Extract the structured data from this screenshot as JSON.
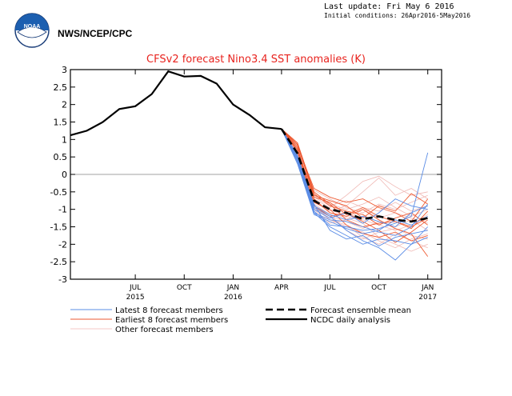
{
  "header": {
    "agency": "NWS/NCEP/CPC",
    "logo_text": "NOAA",
    "last_update": "Last update: Fri May  6 2016",
    "initial_conditions": "Initial conditions: 26Apr2016-5May2016"
  },
  "colors": {
    "title": "#e8231e",
    "latest": "#5a8ce6",
    "earliest": "#ee5a32",
    "other": "#f0b8b4",
    "axis": "#000000",
    "zero_line": "#a0a0a0",
    "logo_blue": "#1c5fb0"
  },
  "chart_data": {
    "type": "line",
    "title": "CFSv2 forecast Nino3.4 SST anomalies (K)",
    "xlabel": "",
    "ylabel": "",
    "ylim": [
      -3,
      3
    ],
    "yticks": [
      -3,
      -2.5,
      -2,
      -1.5,
      -1,
      -0.5,
      0,
      0.5,
      1,
      1.5,
      2,
      2.5,
      3
    ],
    "xlim": [
      "2015-03-15",
      "2017-02-10"
    ],
    "xticks": [
      {
        "date": "2015-07-15",
        "label": "JUL",
        "year": "2015"
      },
      {
        "date": "2015-10-15",
        "label": "OCT",
        "year": ""
      },
      {
        "date": "2016-01-15",
        "label": "JAN",
        "year": "2016"
      },
      {
        "date": "2016-04-15",
        "label": "APR",
        "year": ""
      },
      {
        "date": "2016-07-15",
        "label": "JUL",
        "year": ""
      },
      {
        "date": "2016-10-15",
        "label": "OCT",
        "year": ""
      },
      {
        "date": "2017-01-15",
        "label": "JAN",
        "year": "2017"
      }
    ],
    "grid": false,
    "legend_placement": "bottom",
    "legend": [
      {
        "label": "Latest 8 forecast members",
        "style": "latest"
      },
      {
        "label": "Earliest 8 forecast members",
        "style": "earliest"
      },
      {
        "label": "Other forecast members",
        "style": "other"
      },
      {
        "label": "Forecast ensemble mean",
        "style": "mean"
      },
      {
        "label": "NCDC daily analysis",
        "style": "analysis"
      }
    ],
    "observed": {
      "name": "NCDC daily analysis",
      "x": [
        "2015-03-15",
        "2015-04-15",
        "2015-05-15",
        "2015-06-15",
        "2015-07-15",
        "2015-08-15",
        "2015-09-15",
        "2015-10-15",
        "2015-11-15",
        "2015-12-15",
        "2016-01-15",
        "2016-02-15",
        "2016-03-15",
        "2016-04-15"
      ],
      "values": [
        1.12,
        1.25,
        1.5,
        1.87,
        1.95,
        2.3,
        2.95,
        2.8,
        2.82,
        2.6,
        2.0,
        1.7,
        1.35,
        1.3
      ]
    },
    "ensemble_mean": {
      "name": "Forecast ensemble mean",
      "x": [
        "2016-04-15",
        "2016-05-15",
        "2016-06-15",
        "2016-07-15",
        "2016-08-15",
        "2016-09-15",
        "2016-10-15",
        "2016-11-15",
        "2016-12-15",
        "2017-01-15"
      ],
      "values": [
        1.3,
        0.6,
        -0.75,
        -1.0,
        -1.1,
        -1.28,
        -1.2,
        -1.3,
        -1.35,
        -1.25
      ]
    },
    "member_months": [
      "2016-04-15",
      "2016-05-15",
      "2016-06-15",
      "2016-07-15",
      "2016-08-15",
      "2016-09-15",
      "2016-10-15",
      "2016-11-15",
      "2016-12-15",
      "2017-01-15"
    ],
    "members": [
      {
        "group": "latest",
        "values": [
          1.3,
          0.45,
          -1.05,
          -1.45,
          -1.5,
          -1.6,
          -1.55,
          -1.4,
          -1.2,
          0.62
        ]
      },
      {
        "group": "latest",
        "values": [
          1.3,
          0.4,
          -1.1,
          -1.3,
          -1.35,
          -1.5,
          -1.65,
          -1.75,
          -1.5,
          -0.85
        ]
      },
      {
        "group": "latest",
        "values": [
          1.3,
          0.5,
          -0.95,
          -1.2,
          -1.6,
          -1.9,
          -2.1,
          -2.45,
          -2.0,
          -1.8
        ]
      },
      {
        "group": "latest",
        "values": [
          1.3,
          0.35,
          -1.1,
          -1.5,
          -1.75,
          -2.0,
          -1.85,
          -1.9,
          -2.0,
          -1.5
        ]
      },
      {
        "group": "latest",
        "values": [
          1.3,
          0.55,
          -0.9,
          -1.15,
          -1.3,
          -1.2,
          -1.35,
          -1.5,
          -1.1,
          -0.9
        ]
      },
      {
        "group": "latest",
        "values": [
          1.3,
          0.3,
          -1.15,
          -1.35,
          -1.55,
          -1.7,
          -1.6,
          -1.3,
          -1.45,
          -1.2
        ]
      },
      {
        "group": "latest",
        "values": [
          1.3,
          0.5,
          -1.0,
          -1.25,
          -1.1,
          -1.4,
          -1.1,
          -0.7,
          -0.9,
          -1.0
        ]
      },
      {
        "group": "latest",
        "values": [
          1.3,
          0.45,
          -0.85,
          -1.6,
          -1.85,
          -1.75,
          -2.05,
          -1.8,
          -1.7,
          -1.6
        ]
      },
      {
        "group": "earliest",
        "values": [
          1.3,
          0.85,
          -0.6,
          -0.75,
          -0.9,
          -1.25,
          -0.9,
          -1.05,
          -0.55,
          -0.85
        ]
      },
      {
        "group": "earliest",
        "values": [
          1.3,
          0.9,
          -0.5,
          -0.85,
          -1.3,
          -1.5,
          -1.4,
          -1.35,
          -1.5,
          -1.25
        ]
      },
      {
        "group": "earliest",
        "values": [
          1.3,
          0.75,
          -0.7,
          -1.1,
          -1.2,
          -1.0,
          -1.3,
          -1.55,
          -1.7,
          -2.35
        ]
      },
      {
        "group": "earliest",
        "values": [
          1.3,
          0.8,
          -0.4,
          -0.65,
          -0.8,
          -0.7,
          -0.95,
          -1.1,
          -1.35,
          -0.7
        ]
      },
      {
        "group": "earliest",
        "values": [
          1.3,
          0.7,
          -0.8,
          -1.0,
          -1.45,
          -1.7,
          -1.8,
          -1.65,
          -1.9,
          -1.75
        ]
      },
      {
        "group": "earliest",
        "values": [
          1.3,
          0.85,
          -0.55,
          -0.9,
          -1.05,
          -1.15,
          -1.45,
          -1.25,
          -1.1,
          -1.45
        ]
      },
      {
        "group": "earliest",
        "values": [
          1.3,
          0.65,
          -0.9,
          -1.2,
          -1.1,
          -1.35,
          -1.6,
          -1.95,
          -1.65,
          -1.3
        ]
      },
      {
        "group": "earliest",
        "values": [
          1.3,
          0.9,
          -0.65,
          -0.8,
          -1.15,
          -0.95,
          -1.2,
          -1.35,
          -1.55,
          -1.05
        ]
      },
      {
        "group": "other",
        "values": [
          1.3,
          0.7,
          -0.7,
          -0.95,
          -0.6,
          -0.2,
          -0.05,
          -0.35,
          -0.6,
          -0.5
        ]
      },
      {
        "group": "other",
        "values": [
          1.3,
          0.6,
          -0.8,
          -1.05,
          -0.9,
          -0.5,
          -0.1,
          -0.6,
          -0.4,
          -0.7
        ]
      },
      {
        "group": "other",
        "values": [
          1.3,
          0.65,
          -0.75,
          -1.1,
          -1.25,
          -1.4,
          -1.8,
          -2.0,
          -2.2,
          -2.0
        ]
      },
      {
        "group": "other",
        "values": [
          1.3,
          0.55,
          -0.9,
          -1.3,
          -1.45,
          -1.8,
          -2.0,
          -1.7,
          -1.9,
          -2.1
        ]
      },
      {
        "group": "other",
        "values": [
          1.3,
          0.6,
          -0.6,
          -0.85,
          -1.0,
          -0.85,
          -0.65,
          -0.95,
          -1.2,
          -1.0
        ]
      },
      {
        "group": "other",
        "values": [
          1.3,
          0.5,
          -1.0,
          -1.2,
          -1.35,
          -1.55,
          -1.35,
          -1.5,
          -1.3,
          -1.6
        ]
      },
      {
        "group": "other",
        "values": [
          1.3,
          0.75,
          -0.45,
          -0.7,
          -0.95,
          -1.1,
          -0.85,
          -1.0,
          -0.8,
          -0.6
        ]
      },
      {
        "group": "other",
        "values": [
          1.3,
          0.55,
          -0.85,
          -1.15,
          -1.6,
          -1.85,
          -1.65,
          -1.55,
          -1.75,
          -1.85
        ]
      },
      {
        "group": "other",
        "values": [
          1.3,
          0.45,
          -1.0,
          -1.4,
          -1.3,
          -1.0,
          -1.25,
          -1.1,
          -1.25,
          -1.4
        ]
      },
      {
        "group": "other",
        "values": [
          1.3,
          0.6,
          -0.8,
          -1.0,
          -1.2,
          -1.3,
          -1.45,
          -1.6,
          -1.45,
          -1.15
        ]
      },
      {
        "group": "other",
        "values": [
          1.3,
          0.7,
          -0.65,
          -0.9,
          -0.75,
          -0.95,
          -1.05,
          -0.8,
          -1.05,
          -0.9
        ]
      },
      {
        "group": "other",
        "values": [
          1.3,
          0.5,
          -0.95,
          -1.3,
          -1.5,
          -1.65,
          -1.9,
          -2.1,
          -1.85,
          -1.7
        ]
      }
    ]
  }
}
